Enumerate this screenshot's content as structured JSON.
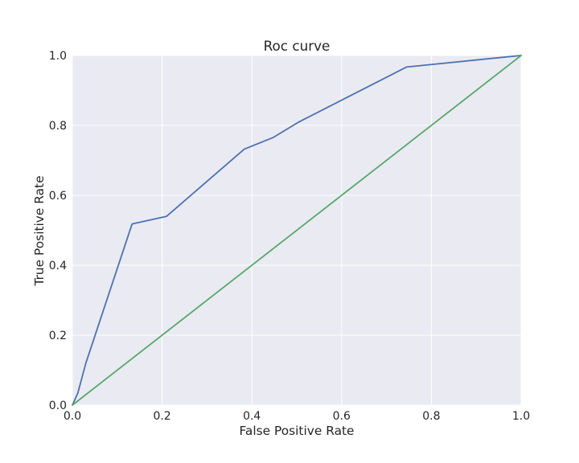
{
  "chart_data": {
    "type": "line",
    "title": "Roc curve",
    "xlabel": "False Positive Rate",
    "ylabel": "True Positive Rate",
    "xlim": [
      0.0,
      1.0
    ],
    "ylim": [
      0.0,
      1.0
    ],
    "x_ticks": [
      "0.0",
      "0.2",
      "0.4",
      "0.6",
      "0.8",
      "1.0"
    ],
    "y_ticks": [
      "0.0",
      "0.2",
      "0.4",
      "0.6",
      "0.8",
      "1.0"
    ],
    "grid": true,
    "legend": "none",
    "background_color": "#EAEAF2",
    "grid_color": "#FFFFFF",
    "series": [
      {
        "color": "#4C72B0",
        "x": [
          0.0,
          0.012,
          0.03,
          0.133,
          0.21,
          0.383,
          0.447,
          0.505,
          0.745,
          1.0
        ],
        "y": [
          0.0,
          0.034,
          0.12,
          0.518,
          0.54,
          0.732,
          0.765,
          0.81,
          0.967,
          1.0
        ]
      },
      {
        "color": "#55A868",
        "x": [
          0.0,
          1.0
        ],
        "y": [
          0.0,
          1.0
        ]
      }
    ]
  }
}
